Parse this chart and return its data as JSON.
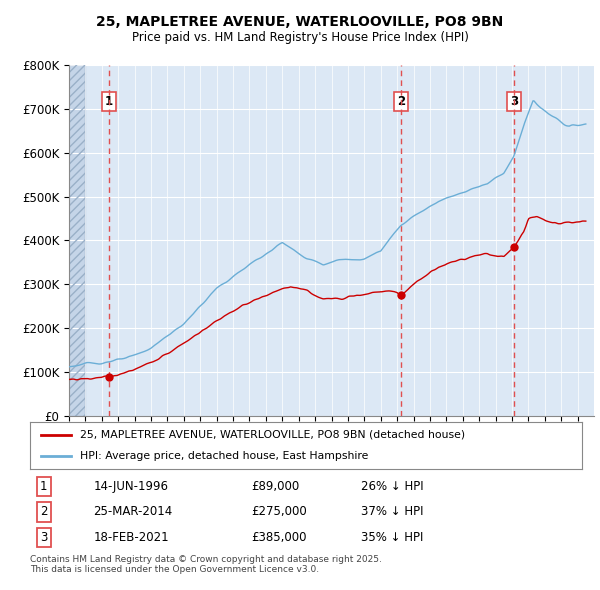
{
  "title_line1": "25, MAPLETREE AVENUE, WATERLOOVILLE, PO8 9BN",
  "title_line2": "Price paid vs. HM Land Registry's House Price Index (HPI)",
  "ylim": [
    0,
    800000
  ],
  "yticks": [
    0,
    100000,
    200000,
    300000,
    400000,
    500000,
    600000,
    700000,
    800000
  ],
  "ytick_labels": [
    "£0",
    "£100K",
    "£200K",
    "£300K",
    "£400K",
    "£500K",
    "£600K",
    "£700K",
    "£800K"
  ],
  "hpi_color": "#6baed6",
  "price_color": "#cc0000",
  "dashed_line_color": "#e05050",
  "background_color": "#dce8f5",
  "hatch_region_end": 1995.0,
  "sale_points": [
    {
      "year": 1996.45,
      "price": 89000,
      "label": "1"
    },
    {
      "year": 2014.23,
      "price": 275000,
      "label": "2"
    },
    {
      "year": 2021.12,
      "price": 385000,
      "label": "3"
    }
  ],
  "legend_entries": [
    "25, MAPLETREE AVENUE, WATERLOOVILLE, PO8 9BN (detached house)",
    "HPI: Average price, detached house, East Hampshire"
  ],
  "table_data": [
    [
      "1",
      "14-JUN-1996",
      "£89,000",
      "26% ↓ HPI"
    ],
    [
      "2",
      "25-MAR-2014",
      "£275,000",
      "37% ↓ HPI"
    ],
    [
      "3",
      "18-FEB-2021",
      "£385,000",
      "35% ↓ HPI"
    ]
  ],
  "footnote": "Contains HM Land Registry data © Crown copyright and database right 2025.\nThis data is licensed under the Open Government Licence v3.0.",
  "xmin": 1994,
  "xmax": 2026
}
